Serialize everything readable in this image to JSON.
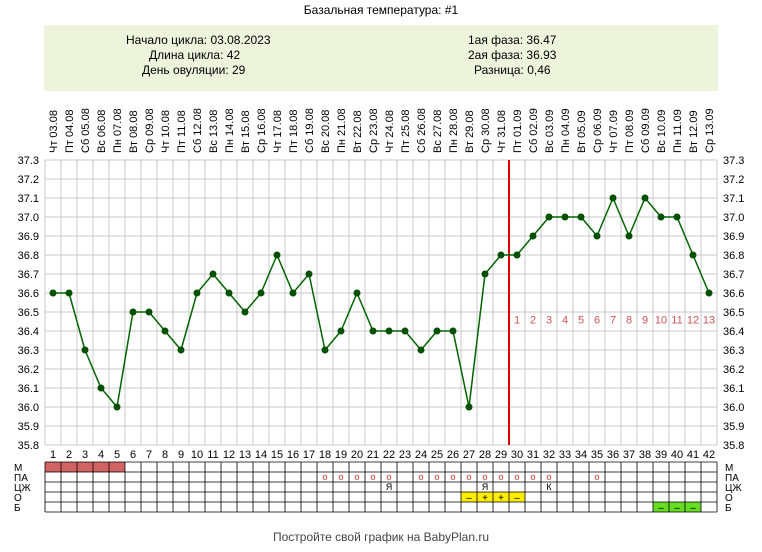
{
  "title": "Базальная температура: #1",
  "info": {
    "cycle_start": "Начало цикла: 03.08.2023",
    "cycle_length": "Длина цикла: 42",
    "ovulation_day": "День овуляции: 29",
    "phase1": "1ая фаза: 36.47",
    "phase2": "2ая фаза: 36.93",
    "difference": "Разница: 0,46"
  },
  "footer": {
    "prefix": "Постройте свой график на ",
    "link": "BabyPlan.ru"
  },
  "colors": {
    "line": "#006400",
    "point": "#005000",
    "grid": "#c8c8c8",
    "ovulation_line": "#dd0000",
    "post_ovulation_numbers": "#cc5555",
    "info_background": "#ecf5dc",
    "menstruation": "#d36464",
    "test_negative_pre": "#ffee00",
    "test_negative_post": "#66dd22",
    "marker_text": "#cc3333"
  },
  "chart_data": {
    "type": "line",
    "title": "Базальная температура: #1",
    "x": [
      1,
      2,
      3,
      4,
      5,
      6,
      7,
      8,
      9,
      10,
      11,
      12,
      13,
      14,
      15,
      16,
      17,
      18,
      19,
      20,
      21,
      22,
      23,
      24,
      25,
      26,
      27,
      28,
      29,
      30,
      31,
      32,
      33,
      34,
      35,
      36,
      37,
      38,
      39,
      40,
      41,
      42
    ],
    "dates": [
      "Чт 03.08",
      "Пт 04.08",
      "Сб 05.08",
      "Вс 06.08",
      "Пн 07.08",
      "Вт 08.08",
      "Ср 09.08",
      "Чт 10.08",
      "Пт 11.08",
      "Сб 12.08",
      "Вс 13.08",
      "Пн 14.08",
      "Вт 15.08",
      "Ср 16.08",
      "Чт 17.08",
      "Пт 18.08",
      "Сб 19.08",
      "Вс 20.08",
      "Пн 21.08",
      "Вт 22.08",
      "Ср 23.08",
      "Чт 24.08",
      "Пт 25.08",
      "Сб 26.08",
      "Вс 27.08",
      "Пн 28.08",
      "Вт 29.08",
      "Ср 30.08",
      "Чт 31.08",
      "Пт 01.09",
      "Сб 02.09",
      "Вс 03.09",
      "Пн 04.09",
      "Вт 05.09",
      "Ср 06.09",
      "Чт 07.09",
      "Пт 08.09",
      "Сб 09.09",
      "Вс 10.09",
      "Пн 11.09",
      "Вт 12.09",
      "Ср 13.09"
    ],
    "series": [
      {
        "values": [
          36.6,
          36.6,
          36.3,
          36.1,
          36.0,
          36.5,
          36.5,
          36.4,
          36.3,
          36.6,
          36.7,
          36.6,
          36.5,
          36.6,
          36.8,
          36.6,
          36.7,
          36.3,
          36.4,
          36.6,
          36.4,
          36.4,
          36.4,
          36.3,
          36.4,
          36.4,
          36.0,
          36.7,
          36.8,
          36.8,
          36.9,
          37.0,
          37.0,
          37.0,
          36.9,
          37.1,
          36.9,
          37.1,
          37.0,
          37.0,
          36.8,
          36.6
        ]
      }
    ],
    "ylim": [
      35.8,
      37.3
    ],
    "yticks": [
      "35.8",
      "35.9",
      "36.0",
      "36.1",
      "36.2",
      "36.3",
      "36.4",
      "36.5",
      "36.6",
      "36.7",
      "36.8",
      "36.9",
      "37.0",
      "37.1",
      "37.2",
      "37.3"
    ],
    "grid": true,
    "ovulation_day": 29,
    "post_ovulation_labels": [
      "1",
      "2",
      "3",
      "4",
      "5",
      "6",
      "7",
      "8",
      "9",
      "10",
      "11",
      "12",
      "13"
    ],
    "rows": {
      "labels": [
        "М",
        "ПА",
        "ЦЖ",
        "О",
        "Б"
      ],
      "menstruation_days": [
        1,
        2,
        3,
        4,
        5
      ],
      "pa_days": [
        18,
        19,
        20,
        21,
        22,
        24,
        25,
        26,
        27,
        28,
        29,
        30,
        31,
        32,
        35
      ],
      "pa_mark": "о",
      "cj": [
        {
          "day": 22,
          "mark": "Я"
        },
        {
          "day": 28,
          "mark": "Я"
        },
        {
          "day": 32,
          "mark": "К"
        }
      ],
      "ovulation_tests": [
        {
          "day": 27,
          "mark": "–"
        },
        {
          "day": 28,
          "mark": "+"
        },
        {
          "day": 29,
          "mark": "+"
        },
        {
          "day": 30,
          "mark": "–"
        }
      ],
      "pregnancy_tests": [
        {
          "day": 39,
          "mark": "–"
        },
        {
          "day": 40,
          "mark": "–"
        },
        {
          "day": 41,
          "mark": "–"
        }
      ]
    }
  }
}
